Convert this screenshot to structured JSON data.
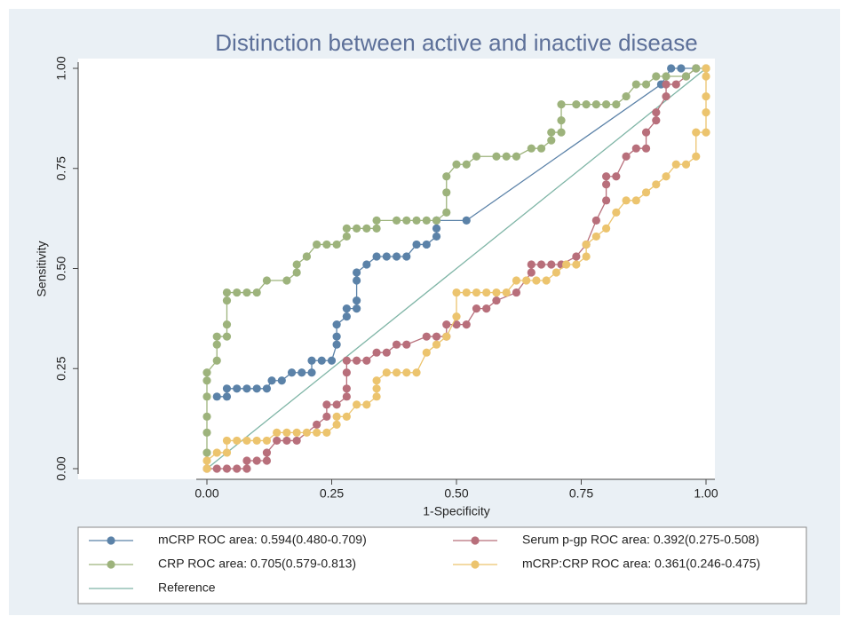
{
  "chart_data": {
    "type": "scatter",
    "title": "Distinction between active and inactive disease",
    "x_label": "1-Specificity",
    "y_label": "Sensitivity",
    "xlim": [
      0,
      1
    ],
    "ylim": [
      0,
      1
    ],
    "xticks": [
      {
        "value": 0,
        "label": "0.00"
      },
      {
        "value": 0.25,
        "label": "0.25"
      },
      {
        "value": 0.5,
        "label": "0.50"
      },
      {
        "value": 0.75,
        "label": "0.75"
      },
      {
        "value": 1,
        "label": "1.00"
      }
    ],
    "yticks": [
      {
        "value": 0,
        "label": "0.00"
      },
      {
        "value": 0.25,
        "label": "0.25"
      },
      {
        "value": 0.5,
        "label": "0.50"
      },
      {
        "value": 0.75,
        "label": "0.75"
      },
      {
        "value": 1,
        "label": "1.00"
      }
    ],
    "legend": "bottom",
    "series": [
      {
        "name": "mCRP ROC area: 0.594(0.480-0.709)",
        "color": "#5b82a8",
        "markers": true,
        "x": [
          0.02,
          0.04,
          0.04,
          0.06,
          0.08,
          0.1,
          0.12,
          0.13,
          0.15,
          0.17,
          0.19,
          0.21,
          0.21,
          0.23,
          0.25,
          0.26,
          0.26,
          0.26,
          0.28,
          0.28,
          0.3,
          0.3,
          0.3,
          0.3,
          0.32,
          0.34,
          0.36,
          0.38,
          0.4,
          0.42,
          0.44,
          0.46,
          0.46,
          0.46,
          0.52,
          0.91,
          0.93,
          0.95,
          0.98
        ],
        "y": [
          0.18,
          0.18,
          0.2,
          0.2,
          0.2,
          0.2,
          0.2,
          0.22,
          0.22,
          0.24,
          0.24,
          0.24,
          0.27,
          0.27,
          0.27,
          0.31,
          0.33,
          0.36,
          0.38,
          0.4,
          0.4,
          0.42,
          0.47,
          0.49,
          0.51,
          0.53,
          0.53,
          0.53,
          0.53,
          0.56,
          0.56,
          0.58,
          0.6,
          0.62,
          0.62,
          0.96,
          1.0,
          1.0,
          1.0
        ]
      },
      {
        "name": "Serum p-gp ROC area: 0.392(0.275-0.508)",
        "color": "#b86f7b",
        "markers": true,
        "x": [
          0,
          0.02,
          0.04,
          0.06,
          0.08,
          0.08,
          0.1,
          0.12,
          0.12,
          0.14,
          0.16,
          0.18,
          0.22,
          0.24,
          0.24,
          0.26,
          0.28,
          0.28,
          0.28,
          0.28,
          0.3,
          0.32,
          0.34,
          0.36,
          0.38,
          0.4,
          0.44,
          0.46,
          0.48,
          0.48,
          0.5,
          0.52,
          0.54,
          0.56,
          0.58,
          0.62,
          0.65,
          0.65,
          0.67,
          0.69,
          0.71,
          0.74,
          0.76,
          0.78,
          0.8,
          0.8,
          0.8,
          0.82,
          0.84,
          0.86,
          0.88,
          0.88,
          0.9,
          0.9,
          0.92,
          0.92,
          0.94,
          0.96,
          0.98
        ],
        "y": [
          0,
          0,
          0,
          0,
          0,
          0.02,
          0.02,
          0.02,
          0.04,
          0.07,
          0.07,
          0.07,
          0.11,
          0.13,
          0.16,
          0.16,
          0.18,
          0.2,
          0.24,
          0.27,
          0.27,
          0.27,
          0.29,
          0.29,
          0.31,
          0.31,
          0.33,
          0.33,
          0.33,
          0.36,
          0.36,
          0.36,
          0.4,
          0.4,
          0.42,
          0.44,
          0.49,
          0.51,
          0.51,
          0.51,
          0.51,
          0.53,
          0.56,
          0.62,
          0.67,
          0.71,
          0.73,
          0.73,
          0.78,
          0.8,
          0.8,
          0.84,
          0.87,
          0.89,
          0.93,
          0.96,
          0.96,
          0.98,
          1.0
        ]
      },
      {
        "name": "CRP ROC area: 0.705(0.579-0.813)",
        "color": "#9db37c",
        "markers": true,
        "x": [
          0,
          0,
          0,
          0,
          0,
          0,
          0.02,
          0.02,
          0.02,
          0.04,
          0.04,
          0.04,
          0.04,
          0.06,
          0.08,
          0.1,
          0.12,
          0.16,
          0.18,
          0.18,
          0.2,
          0.2,
          0.22,
          0.24,
          0.26,
          0.28,
          0.28,
          0.3,
          0.32,
          0.34,
          0.34,
          0.38,
          0.4,
          0.42,
          0.44,
          0.46,
          0.48,
          0.48,
          0.48,
          0.5,
          0.52,
          0.54,
          0.58,
          0.6,
          0.62,
          0.65,
          0.67,
          0.69,
          0.69,
          0.71,
          0.71,
          0.71,
          0.74,
          0.76,
          0.78,
          0.8,
          0.82,
          0.84,
          0.86,
          0.88,
          0.9,
          0.92,
          0.96,
          0.98,
          1.0
        ],
        "y": [
          0.04,
          0.09,
          0.13,
          0.18,
          0.22,
          0.24,
          0.27,
          0.31,
          0.33,
          0.33,
          0.36,
          0.42,
          0.44,
          0.44,
          0.44,
          0.44,
          0.47,
          0.47,
          0.49,
          0.51,
          0.53,
          0.53,
          0.56,
          0.56,
          0.56,
          0.58,
          0.6,
          0.6,
          0.6,
          0.6,
          0.62,
          0.62,
          0.62,
          0.62,
          0.62,
          0.62,
          0.64,
          0.69,
          0.73,
          0.76,
          0.76,
          0.78,
          0.78,
          0.78,
          0.78,
          0.8,
          0.8,
          0.82,
          0.84,
          0.84,
          0.87,
          0.91,
          0.91,
          0.91,
          0.91,
          0.91,
          0.91,
          0.93,
          0.96,
          0.96,
          0.98,
          0.98,
          0.98,
          1.0,
          1.0
        ]
      },
      {
        "name": "mCRP:CRP ROC area: 0.361(0.246-0.475)",
        "color": "#ecc46e",
        "markers": true,
        "x": [
          0,
          0,
          0.02,
          0.04,
          0.04,
          0.06,
          0.08,
          0.1,
          0.12,
          0.14,
          0.16,
          0.18,
          0.2,
          0.22,
          0.24,
          0.26,
          0.26,
          0.28,
          0.3,
          0.32,
          0.34,
          0.34,
          0.34,
          0.36,
          0.38,
          0.4,
          0.42,
          0.44,
          0.46,
          0.48,
          0.5,
          0.5,
          0.52,
          0.54,
          0.56,
          0.58,
          0.6,
          0.62,
          0.64,
          0.66,
          0.68,
          0.7,
          0.72,
          0.74,
          0.76,
          0.76,
          0.78,
          0.8,
          0.82,
          0.84,
          0.86,
          0.88,
          0.9,
          0.92,
          0.94,
          0.96,
          0.98,
          0.98,
          1.0,
          1.0,
          1.0,
          1.0,
          1.0
        ],
        "y": [
          0,
          0.02,
          0.04,
          0.04,
          0.07,
          0.07,
          0.07,
          0.07,
          0.07,
          0.09,
          0.09,
          0.09,
          0.09,
          0.09,
          0.09,
          0.11,
          0.13,
          0.13,
          0.16,
          0.16,
          0.18,
          0.2,
          0.22,
          0.24,
          0.24,
          0.24,
          0.24,
          0.29,
          0.31,
          0.33,
          0.38,
          0.44,
          0.44,
          0.44,
          0.44,
          0.44,
          0.44,
          0.47,
          0.47,
          0.47,
          0.47,
          0.49,
          0.51,
          0.51,
          0.53,
          0.56,
          0.58,
          0.6,
          0.64,
          0.67,
          0.67,
          0.69,
          0.71,
          0.73,
          0.76,
          0.76,
          0.78,
          0.84,
          0.84,
          0.89,
          0.93,
          0.98,
          1.0
        ]
      },
      {
        "name": "Reference",
        "color": "#7fb5a6",
        "markers": false,
        "x": [
          0,
          1
        ],
        "y": [
          0,
          1
        ]
      }
    ]
  }
}
